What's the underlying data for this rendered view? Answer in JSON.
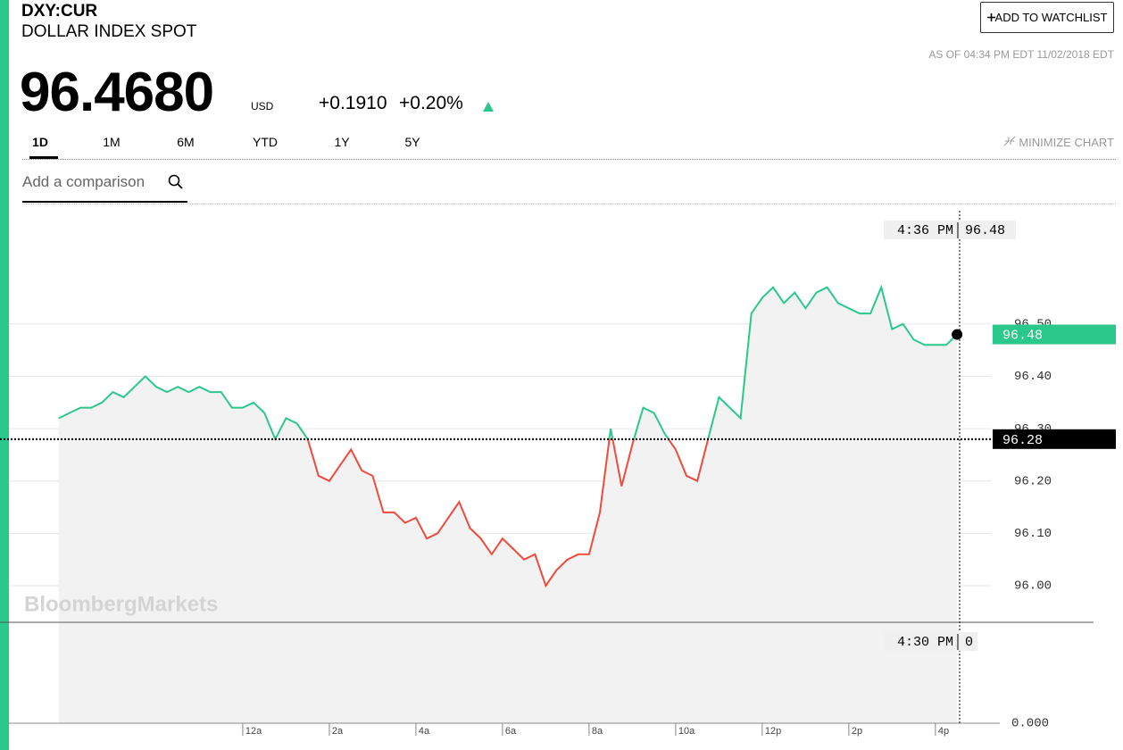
{
  "header": {
    "symbol": "DXY:CUR",
    "name": "DOLLAR INDEX SPOT",
    "price": "96.4680",
    "currency": "USD",
    "change": "+0.1910",
    "change_pct": "+0.20%",
    "watchlist_button": "ADD TO WATCHLIST",
    "as_of": "AS OF 04:34 PM EDT 11/02/2018 EDT"
  },
  "range_tabs": {
    "tabs": [
      "1D",
      "1M",
      "6M",
      "YTD",
      "1Y",
      "5Y"
    ],
    "active": "1D"
  },
  "minimize": "MINIMIZE CHART",
  "comparison_placeholder": "Add a comparison",
  "watermark": "BloombergMarkets",
  "chart_data": {
    "type": "line",
    "x": [
      -4.25,
      -4,
      -3.75,
      -3.5,
      -3.25,
      -3,
      -2.75,
      -2.5,
      -2.25,
      -2,
      -1.75,
      -1.5,
      -1.25,
      -1,
      -0.75,
      -0.5,
      -0.25,
      0,
      0.25,
      0.5,
      0.75,
      1,
      1.25,
      1.5,
      1.75,
      2,
      2.25,
      2.5,
      2.75,
      3,
      3.25,
      3.5,
      3.75,
      4,
      4.25,
      4.5,
      4.75,
      5,
      5.25,
      5.5,
      5.75,
      6,
      6.25,
      6.5,
      6.75,
      7,
      7.25,
      7.5,
      7.75,
      8,
      8.25,
      8.5,
      8.75,
      9,
      9.25,
      9.5,
      9.75,
      10,
      10.25,
      10.5,
      10.75,
      11,
      11.25,
      11.5,
      11.75,
      12,
      12.25,
      12.5,
      12.75,
      13,
      13.25,
      13.5,
      13.75,
      14,
      14.25,
      14.5,
      14.75,
      15,
      15.25,
      15.5,
      15.75,
      16,
      16.25,
      16.5
    ],
    "values": [
      96.32,
      96.33,
      96.34,
      96.34,
      96.35,
      96.37,
      96.36,
      96.38,
      96.4,
      96.38,
      96.37,
      96.38,
      96.37,
      96.38,
      96.37,
      96.37,
      96.34,
      96.34,
      96.35,
      96.33,
      96.28,
      96.32,
      96.31,
      96.28,
      96.21,
      96.2,
      96.23,
      96.26,
      96.22,
      96.21,
      96.14,
      96.14,
      96.12,
      96.13,
      96.09,
      96.1,
      96.13,
      96.16,
      96.11,
      96.09,
      96.06,
      96.09,
      96.07,
      96.05,
      96.06,
      96.0,
      96.03,
      96.05,
      96.06,
      96.06,
      96.14,
      96.3,
      96.19,
      96.27,
      96.34,
      96.33,
      96.29,
      96.26,
      96.21,
      96.2,
      96.28,
      96.36,
      96.34,
      96.32,
      96.52,
      96.55,
      96.57,
      96.54,
      96.56,
      96.53,
      96.56,
      96.57,
      96.54,
      96.53,
      96.52,
      96.52,
      96.57,
      96.49,
      96.5,
      96.47,
      96.46,
      96.46,
      96.46,
      96.48
    ],
    "up_color": "#2bc88c",
    "down_color": "#f04a3c",
    "area_color": "#f2f2f2",
    "previous_close": 96.28,
    "xlim": [
      -4.37,
      16.56
    ],
    "ylim": [
      95.93,
      96.73
    ],
    "xticks": [
      {
        "value": 0,
        "label": "12a"
      },
      {
        "value": 2,
        "label": "2a"
      },
      {
        "value": 4,
        "label": "4a"
      },
      {
        "value": 6,
        "label": "6a"
      },
      {
        "value": 8,
        "label": "8a"
      },
      {
        "value": 10,
        "label": "10a"
      },
      {
        "value": 12,
        "label": "12p"
      },
      {
        "value": 14,
        "label": "2p"
      },
      {
        "value": 16,
        "label": "4p"
      }
    ],
    "yticks": [
      {
        "value": 96.0,
        "label": "96.00"
      },
      {
        "value": 96.1,
        "label": "96.10"
      },
      {
        "value": 96.2,
        "label": "96.20"
      },
      {
        "value": 96.3,
        "label": "96.30"
      },
      {
        "value": 96.4,
        "label": "96.40"
      },
      {
        "value": 96.5,
        "label": "96.50"
      }
    ],
    "grid": true,
    "crosshair_time": "4:36 PM",
    "volume": {
      "crosshair_time": "4:30 PM",
      "crosshair_value": 0,
      "yticks": [
        {
          "value": 0,
          "label": "0.000"
        }
      ]
    }
  }
}
